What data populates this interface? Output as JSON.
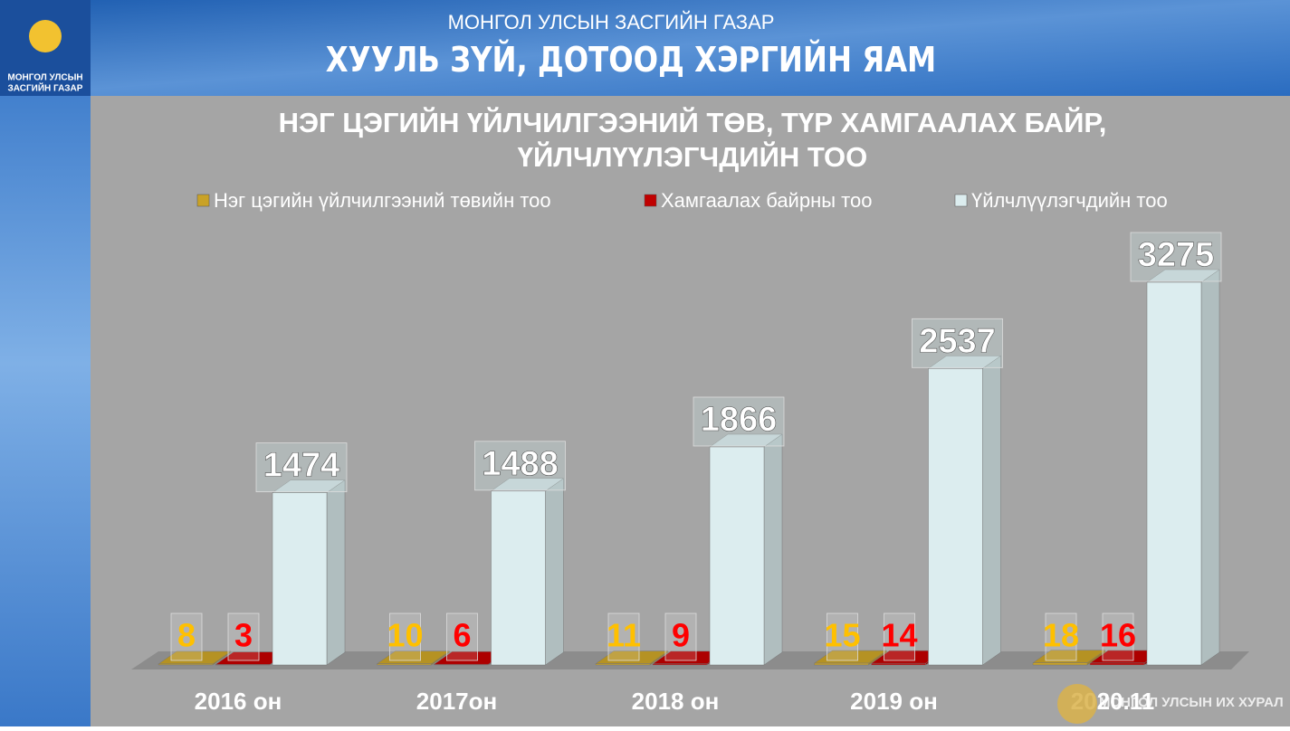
{
  "header": {
    "logo_text": [
      "МОНГОЛ УЛСЫН",
      "ЗАСГИЙН ГАЗАР"
    ],
    "ministry_top": "МОНГОЛ УЛСЫН ЗАСГИЙН ГАЗАР",
    "ministry_name": "ХУУЛЬ ЗҮЙ, ДОТООД ХЭРГИЙН ЯАМ",
    "watermark": "МОНГОЛ УЛСЫН ИХ ХУРАЛ"
  },
  "chart_data": {
    "type": "bar",
    "title": [
      "НЭГ ЦЭГИЙН ҮЙЛЧИЛГЭЭНИЙ ТӨВ, ТҮР ХАМГААЛАХ БАЙР,",
      "ҮЙЛЧЛҮҮЛЭГЧДИЙН ТОО"
    ],
    "categories": [
      "2016 он",
      "2017он",
      "2018 он",
      "2019 он",
      "2020.11"
    ],
    "series": [
      {
        "name": "Нэг цэгийн үйлчилгээний төвийн тоо",
        "color": "#c9a227",
        "label_color": "#ffc000",
        "values": [
          8,
          10,
          11,
          15,
          18
        ]
      },
      {
        "name": "Хамгаалах байрны тоо",
        "color": "#c00000",
        "label_color": "#ff0000",
        "values": [
          3,
          6,
          9,
          14,
          16
        ]
      },
      {
        "name": "Үйлчлүүлэгчдийн тоо",
        "color": "#dcedef",
        "label_color": "#ffffff",
        "values": [
          1474,
          1488,
          1866,
          2537,
          3275
        ]
      }
    ],
    "legend": "top"
  }
}
